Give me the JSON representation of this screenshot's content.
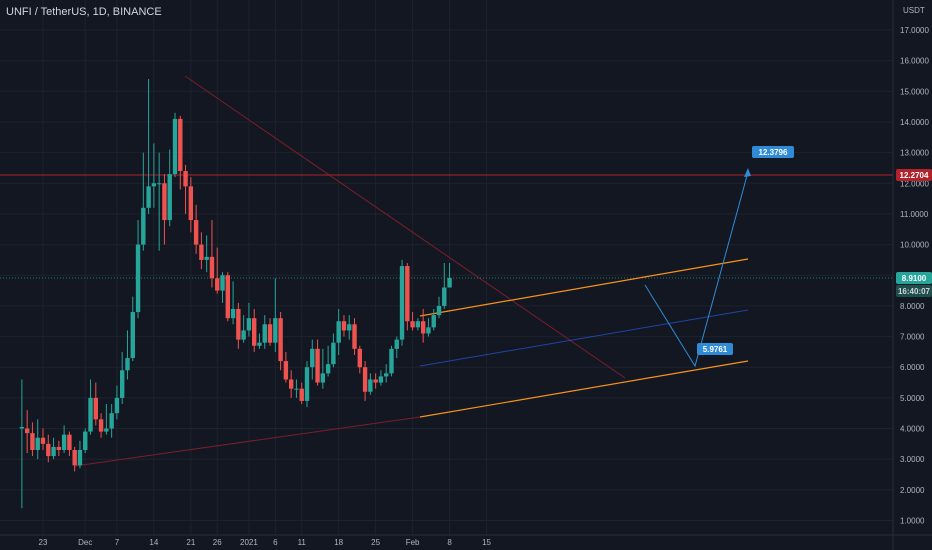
{
  "header": {
    "title": "UNFI / TetherUS, 1D, BINANCE"
  },
  "axis_currency": "USDT",
  "colors": {
    "bg": "#131722",
    "up": "#26a69a",
    "down": "#ef5350",
    "grid": "#1e222d",
    "channel": "#f7931a",
    "trend": "#7a1f2a",
    "projection": "#2962ff",
    "hline": "#b2222a"
  },
  "price_labels": {
    "resistance": "12.2704",
    "current": "8.9100",
    "countdown": "16:40:07",
    "target_high": "12.3796",
    "target_low": "5.9761"
  },
  "chart_data": {
    "type": "candlestick",
    "title": "",
    "yaxis_ticks": [
      "1.0000",
      "2.0000",
      "3.0000",
      "4.0000",
      "5.0000",
      "6.0000",
      "7.0000",
      "8.0000",
      "9.0000",
      "10.0000",
      "11.0000",
      "12.0000",
      "13.0000",
      "14.0000",
      "15.0000",
      "16.0000",
      "17.0000"
    ],
    "xaxis_ticks": [
      {
        "label": "23",
        "day": 0
      },
      {
        "label": "Dec",
        "day": 8
      },
      {
        "label": "7",
        "day": 14
      },
      {
        "label": "14",
        "day": 21
      },
      {
        "label": "21",
        "day": 28
      },
      {
        "label": "26",
        "day": 33
      },
      {
        "label": "2021",
        "day": 39
      },
      {
        "label": "6",
        "day": 44
      },
      {
        "label": "11",
        "day": 49
      },
      {
        "label": "18",
        "day": 56
      },
      {
        "label": "25",
        "day": 63
      },
      {
        "label": "Feb",
        "day": 70
      },
      {
        "label": "8",
        "day": 77
      },
      {
        "label": "15",
        "day": 84
      }
    ],
    "ylim": [
      0.75,
      17.6
    ],
    "candles": [
      [
        4.0,
        4.05,
        5.6,
        1.4
      ],
      [
        4.0,
        3.85,
        4.6,
        3.2
      ],
      [
        3.85,
        3.3,
        4.2,
        3.1
      ],
      [
        3.3,
        3.7,
        4.3,
        3.0
      ],
      [
        3.7,
        3.5,
        4.0,
        3.3
      ],
      [
        3.5,
        3.1,
        3.8,
        2.9
      ],
      [
        3.1,
        3.4,
        3.7,
        3.0
      ],
      [
        3.4,
        3.3,
        3.6,
        3.1
      ],
      [
        3.3,
        3.8,
        4.1,
        3.2
      ],
      [
        3.8,
        3.3,
        3.9,
        3.1
      ],
      [
        3.3,
        2.8,
        3.4,
        2.6
      ],
      [
        2.8,
        3.3,
        3.6,
        2.7
      ],
      [
        3.3,
        3.9,
        4.0,
        3.2
      ],
      [
        3.9,
        5.0,
        5.6,
        3.8
      ],
      [
        5.0,
        4.3,
        5.5,
        4.1
      ],
      [
        4.3,
        3.9,
        4.5,
        3.7
      ],
      [
        3.9,
        4.0,
        4.8,
        3.8
      ],
      [
        4.0,
        4.5,
        4.8,
        3.7
      ],
      [
        4.5,
        5.0,
        5.4,
        4.3
      ],
      [
        5.0,
        5.9,
        6.5,
        4.8
      ],
      [
        5.9,
        6.3,
        7.2,
        5.6
      ],
      [
        6.3,
        7.8,
        8.3,
        6.2
      ],
      [
        7.8,
        10.0,
        10.8,
        7.6
      ],
      [
        10.0,
        11.2,
        13.0,
        9.8
      ],
      [
        11.2,
        11.9,
        15.4,
        11.0
      ],
      [
        11.9,
        12.0,
        13.3,
        11.2
      ],
      [
        12.0,
        12.0,
        13.0,
        9.8
      ],
      [
        12.0,
        10.8,
        12.3,
        10.0
      ],
      [
        10.8,
        12.3,
        13.1,
        10.6
      ],
      [
        12.3,
        14.1,
        14.3,
        12.2
      ],
      [
        14.1,
        12.4,
        14.2,
        11.8
      ],
      [
        12.4,
        11.9,
        12.6,
        11.0
      ],
      [
        11.9,
        10.8,
        12.2,
        10.4
      ],
      [
        10.8,
        10.0,
        11.3,
        9.7
      ],
      [
        10.0,
        9.5,
        10.4,
        9.2
      ],
      [
        9.5,
        9.6,
        10.3,
        9.1
      ],
      [
        9.6,
        8.9,
        10.8,
        8.6
      ],
      [
        8.9,
        8.5,
        9.9,
        8.4
      ],
      [
        8.5,
        9.0,
        9.1,
        8.1
      ],
      [
        9.0,
        7.6,
        9.1,
        7.5
      ],
      [
        7.6,
        7.9,
        8.8,
        7.4
      ],
      [
        7.9,
        6.9,
        8.1,
        6.6
      ],
      [
        6.9,
        7.2,
        7.7,
        6.8
      ],
      [
        7.2,
        7.6,
        8.1,
        7.0
      ],
      [
        7.6,
        6.7,
        7.9,
        6.5
      ],
      [
        6.7,
        6.8,
        7.1,
        6.6
      ],
      [
        6.8,
        7.4,
        7.7,
        6.6
      ],
      [
        7.4,
        6.8,
        7.6,
        6.7
      ],
      [
        6.8,
        7.6,
        8.9,
        6.5
      ],
      [
        7.6,
        6.2,
        7.8,
        5.9
      ],
      [
        6.2,
        5.6,
        6.5,
        5.5
      ],
      [
        5.6,
        5.3,
        5.9,
        5.0
      ],
      [
        5.3,
        5.3,
        5.6,
        5.0
      ],
      [
        5.3,
        4.9,
        5.5,
        4.8
      ],
      [
        4.9,
        6.0,
        6.2,
        4.7
      ],
      [
        6.0,
        6.6,
        6.9,
        5.6
      ],
      [
        6.6,
        5.5,
        6.9,
        5.4
      ],
      [
        5.5,
        5.8,
        6.6,
        5.3
      ],
      [
        5.8,
        6.1,
        6.7,
        5.7
      ],
      [
        6.1,
        6.8,
        7.1,
        6.0
      ],
      [
        6.8,
        7.5,
        7.9,
        6.4
      ],
      [
        7.5,
        7.2,
        7.7,
        7.0
      ],
      [
        7.2,
        7.4,
        7.7,
        6.9
      ],
      [
        7.4,
        6.6,
        7.6,
        6.4
      ],
      [
        6.6,
        6.0,
        6.7,
        5.8
      ],
      [
        6.0,
        5.2,
        6.2,
        4.9
      ],
      [
        5.2,
        5.6,
        5.8,
        5.1
      ],
      [
        5.6,
        5.5,
        5.8,
        5.3
      ],
      [
        5.5,
        5.7,
        5.9,
        5.4
      ],
      [
        5.7,
        5.8,
        6.1,
        5.5
      ],
      [
        5.8,
        6.6,
        6.7,
        5.7
      ],
      [
        6.6,
        6.9,
        7.0,
        6.3
      ],
      [
        6.9,
        9.3,
        9.5,
        6.7
      ],
      [
        9.3,
        7.5,
        9.4,
        7.2
      ],
      [
        7.5,
        7.3,
        7.8,
        7.2
      ],
      [
        7.3,
        7.5,
        7.6,
        7.2
      ],
      [
        7.5,
        7.1,
        7.9,
        6.8
      ],
      [
        7.1,
        7.3,
        7.6,
        7.0
      ],
      [
        7.3,
        7.7,
        7.9,
        7.2
      ],
      [
        7.7,
        8.0,
        8.3,
        7.6
      ],
      [
        8.0,
        8.6,
        9.4,
        7.9
      ],
      [
        8.6,
        8.91,
        9.4,
        8.6
      ]
    ]
  }
}
